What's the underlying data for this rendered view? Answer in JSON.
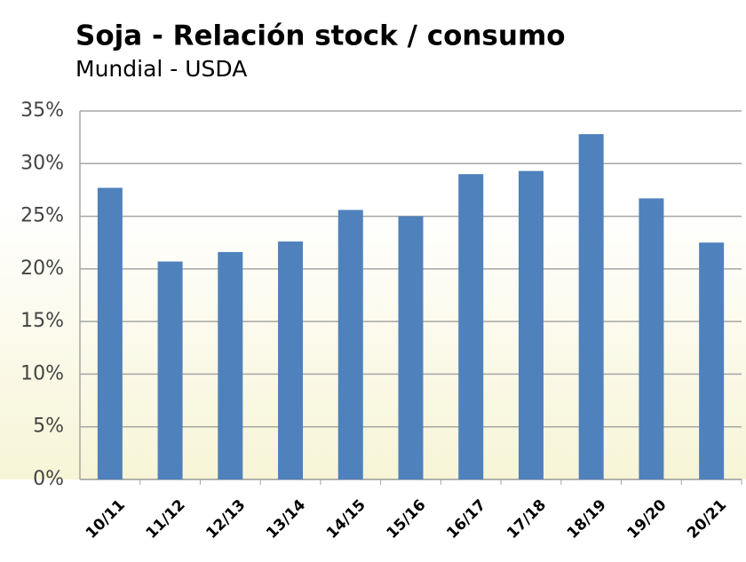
{
  "chart_data": {
    "type": "bar",
    "title": "Soja - Relación stock / consumo",
    "subtitle": "Mundial - USDA",
    "categories": [
      "10/11",
      "11/12",
      "12/13",
      "13/14",
      "14/15",
      "15/16",
      "16/17",
      "17/18",
      "18/19",
      "19/20",
      "20/21"
    ],
    "values": [
      27.7,
      20.7,
      21.6,
      22.6,
      25.6,
      25.0,
      29.0,
      29.3,
      32.8,
      26.7,
      22.5
    ],
    "color": "#4f81bd",
    "ylim": [
      0,
      35
    ],
    "yticks": [
      {
        "value": 0,
        "label": "0%"
      },
      {
        "value": 5,
        "label": "5%"
      },
      {
        "value": 10,
        "label": "10%"
      },
      {
        "value": 15,
        "label": "15%"
      },
      {
        "value": 20,
        "label": "20%"
      },
      {
        "value": 25,
        "label": "25%"
      },
      {
        "value": 30,
        "label": "30%"
      },
      {
        "value": 35,
        "label": "35%"
      }
    ],
    "grid": true
  }
}
